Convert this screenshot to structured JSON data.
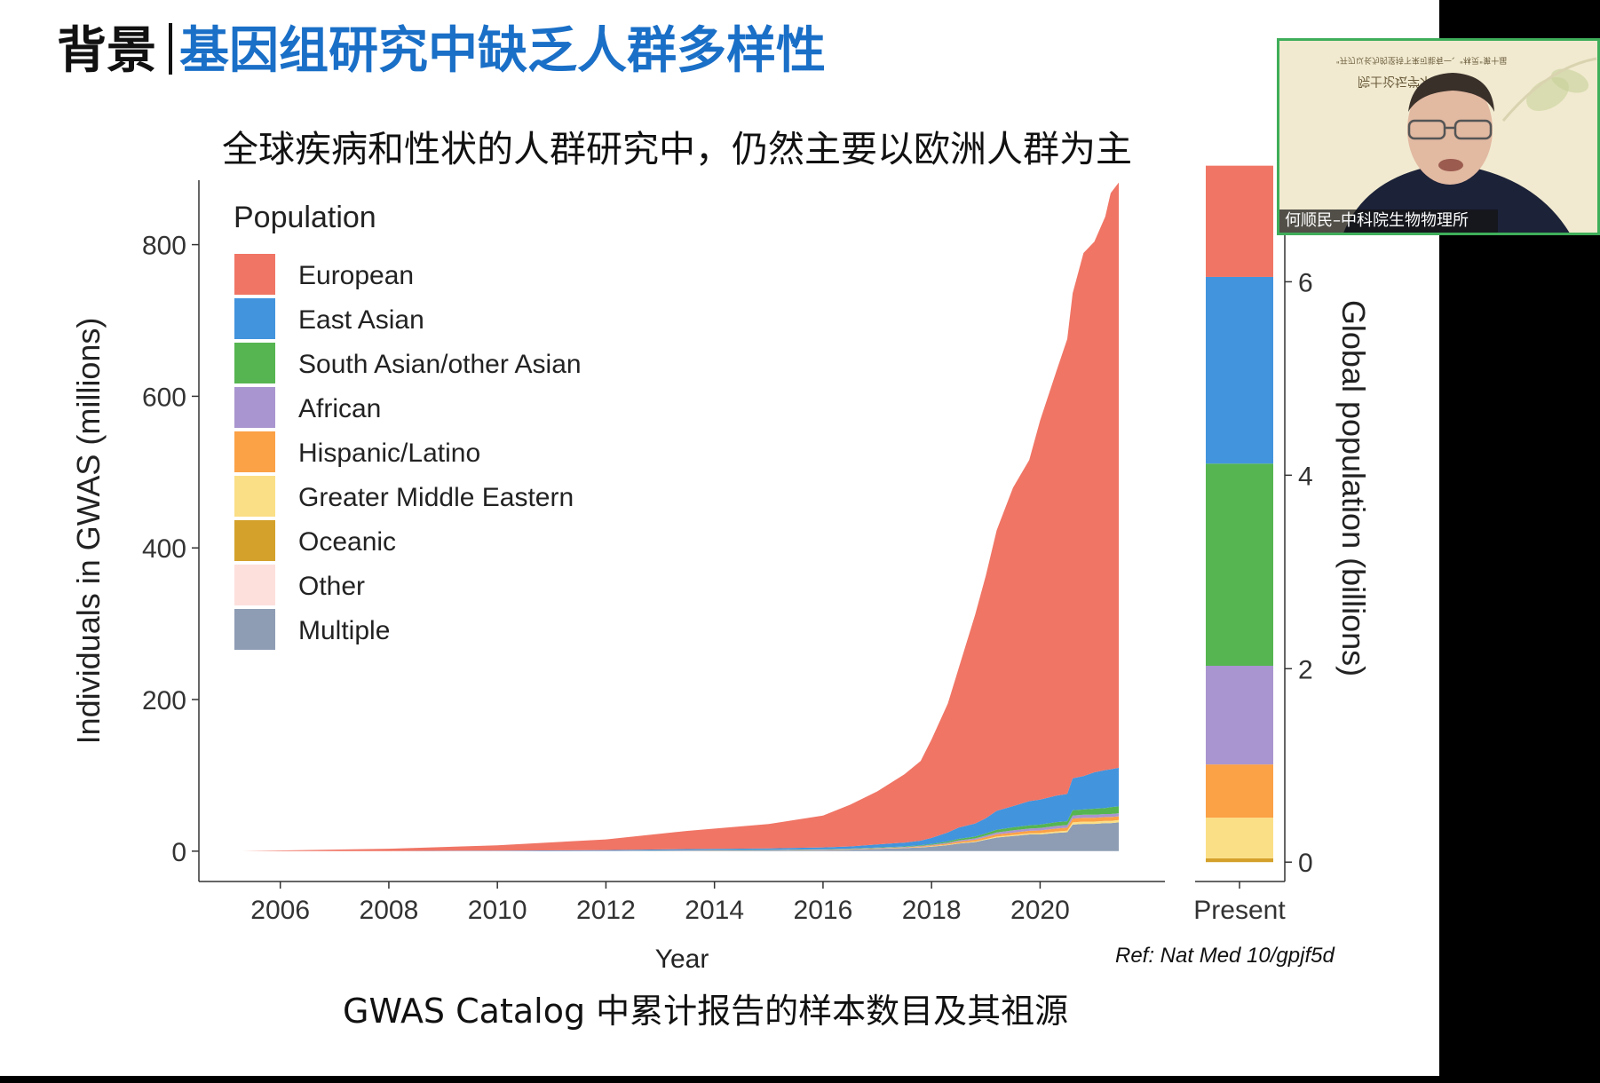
{
  "slide": {
    "title_prefix": "背景",
    "title_main": "基因组研究中缺乏人群多样性",
    "subtitle": "全球疾病和性状的人群研究中，仍然主要以欧洲人群为主",
    "caption": "GWAS Catalog 中累计报告的样本数目及其祖源",
    "ref": "Ref:  Nat Med 10/gpjf5d"
  },
  "webcam": {
    "banner_line1": "\"开刃以长为的坚持下来可能有一、\"林灵\"第十届",
    "banner_line2": "院士论坛学术",
    "speaker_label": "何顺民–中科院生物物理所"
  },
  "colors": {
    "European": "#f07565",
    "East Asian": "#4294dd",
    "South Asian/other Asian": "#56b551",
    "African": "#a995cf",
    "Hispanic/Latino": "#fba146",
    "Greater Middle Eastern": "#fbdf86",
    "Oceanic": "#d4a12b",
    "Other": "#fde0dc",
    "Multiple": "#8e9db4"
  },
  "chart_data": [
    {
      "type": "area",
      "stacked": true,
      "title": "",
      "xlabel": "Year",
      "ylabel": "Individuals in GWAS (millions)",
      "x_ticks": [
        2006,
        2008,
        2010,
        2012,
        2014,
        2016,
        2018,
        2020
      ],
      "y_ticks": [
        0,
        200,
        400,
        600,
        800
      ],
      "xlim": [
        2004.5,
        2022.3
      ],
      "ylim": [
        -40,
        885
      ],
      "legend_title": "Population",
      "legend_position": "top-left",
      "x": [
        2005.3,
        2008,
        2010,
        2012,
        2013.5,
        2015,
        2016,
        2016.5,
        2017,
        2017.5,
        2017.8,
        2018,
        2018.3,
        2018.5,
        2018.8,
        2019,
        2019.2,
        2019.5,
        2019.8,
        2020,
        2020.3,
        2020.5,
        2020.6,
        2020.8,
        2021,
        2021.2,
        2021.3,
        2021.45
      ],
      "series": [
        {
          "name": "Multiple",
          "values": [
            0,
            0.1,
            0.2,
            0.4,
            0.8,
            1,
            1.5,
            2,
            3,
            4,
            5,
            6,
            8,
            10,
            12,
            15,
            18,
            20,
            22,
            22,
            24,
            25,
            35,
            36,
            36,
            37,
            37,
            38
          ]
        },
        {
          "name": "Other",
          "values": [
            0,
            0,
            0,
            0,
            0,
            0,
            0,
            0,
            0,
            0,
            0,
            0,
            0,
            0,
            0,
            0,
            0,
            0,
            0,
            0,
            0,
            0,
            0,
            0,
            0,
            0,
            0,
            0
          ]
        },
        {
          "name": "Oceanic",
          "values": [
            0,
            0,
            0,
            0,
            0,
            0,
            0,
            0,
            0,
            0,
            0,
            0,
            0,
            0,
            0,
            0,
            0,
            0,
            0,
            0,
            0,
            0,
            0,
            0,
            0,
            0,
            0,
            0
          ]
        },
        {
          "name": "Greater Middle Eastern",
          "values": [
            0,
            0,
            0,
            0,
            0,
            0,
            0,
            0,
            0.2,
            0.3,
            0.4,
            0.5,
            0.6,
            0.7,
            0.8,
            1,
            1.2,
            1.4,
            1.6,
            1.8,
            2,
            2,
            3,
            3,
            3,
            3,
            3,
            3
          ]
        },
        {
          "name": "Hispanic/Latino",
          "values": [
            0,
            0,
            0,
            0,
            0.1,
            0.2,
            0.3,
            0.4,
            0.5,
            0.6,
            0.8,
            1,
            1.5,
            2,
            2.2,
            2.5,
            3,
            3,
            3.2,
            3.5,
            3.8,
            4,
            5,
            5,
            5,
            5,
            5,
            5
          ]
        },
        {
          "name": "African",
          "values": [
            0,
            0,
            0.1,
            0.1,
            0.2,
            0.3,
            0.4,
            0.5,
            0.6,
            0.7,
            0.8,
            1,
            1.2,
            1.5,
            1.8,
            2,
            2.5,
            3,
            3,
            3.2,
            3.5,
            3.5,
            4,
            4,
            4,
            4,
            4,
            4
          ]
        },
        {
          "name": "South Asian/other Asian",
          "values": [
            0,
            0,
            0,
            0,
            0.1,
            0.2,
            0.3,
            0.4,
            0.5,
            0.7,
            0.9,
            1,
            1.5,
            2,
            2.5,
            3,
            3.5,
            4,
            4.2,
            4.5,
            5,
            5,
            7,
            7,
            8,
            8,
            9,
            9
          ]
        },
        {
          "name": "East Asian",
          "values": [
            0,
            0.1,
            0.5,
            1,
            1.5,
            2,
            2.5,
            3,
            4,
            5,
            6,
            8,
            12,
            15,
            17,
            20,
            25,
            28,
            32,
            33,
            35,
            36,
            42,
            44,
            48,
            50,
            50,
            51
          ]
        },
        {
          "name": "European",
          "values": [
            0,
            3,
            7,
            14,
            24,
            32,
            42,
            55,
            70,
            90,
            105,
            130,
            170,
            210,
            275,
            320,
            370,
            420,
            450,
            500,
            560,
            600,
            640,
            690,
            700,
            730,
            760,
            772
          ]
        }
      ]
    },
    {
      "type": "bar",
      "stacked": true,
      "categories": [
        "Present"
      ],
      "xlabel": "",
      "ylabel": "Global population (billions)",
      "y_ticks": [
        0,
        2,
        4,
        6
      ],
      "ylim": [
        -0.2,
        7.05
      ],
      "series": [
        {
          "name": "Oceanic",
          "values": [
            0.04
          ]
        },
        {
          "name": "Greater Middle Eastern",
          "values": [
            0.42
          ]
        },
        {
          "name": "Hispanic/Latino",
          "values": [
            0.55
          ]
        },
        {
          "name": "African",
          "values": [
            1.02
          ]
        },
        {
          "name": "South Asian/other Asian",
          "values": [
            2.09
          ]
        },
        {
          "name": "East Asian",
          "values": [
            1.93
          ]
        },
        {
          "name": "European",
          "values": [
            1.15
          ]
        }
      ]
    }
  ]
}
